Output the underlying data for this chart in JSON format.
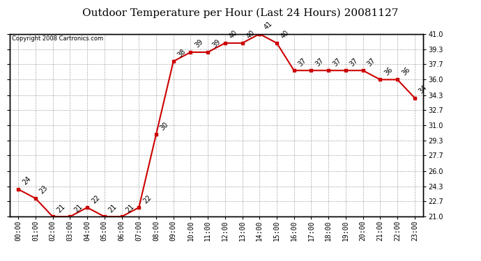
{
  "title": "Outdoor Temperature per Hour (Last 24 Hours) 20081127",
  "copyright": "Copyright 2008 Cartronics.com",
  "hours": [
    "00:00",
    "01:00",
    "02:00",
    "03:00",
    "04:00",
    "05:00",
    "06:00",
    "07:00",
    "08:00",
    "09:00",
    "10:00",
    "11:00",
    "12:00",
    "13:00",
    "14:00",
    "15:00",
    "16:00",
    "17:00",
    "18:00",
    "19:00",
    "20:00",
    "21:00",
    "22:00",
    "23:00"
  ],
  "temps": [
    24,
    23,
    21,
    21,
    22,
    21,
    21,
    22,
    30,
    38,
    39,
    39,
    40,
    40,
    41,
    40,
    37,
    37,
    37,
    37,
    37,
    36,
    36,
    34
  ],
  "ylim": [
    21.0,
    41.0
  ],
  "yticks": [
    21.0,
    22.7,
    24.3,
    26.0,
    27.7,
    29.3,
    31.0,
    32.7,
    34.3,
    36.0,
    37.7,
    39.3,
    41.0
  ],
  "line_color": "#cc0000",
  "marker_color": "#cc0000",
  "bg_color": "#ffffff",
  "plot_bg_color": "#ffffff",
  "grid_color": "#aaaaaa",
  "title_fontsize": 11,
  "tick_fontsize": 7,
  "annot_fontsize": 7,
  "copyright_fontsize": 6
}
